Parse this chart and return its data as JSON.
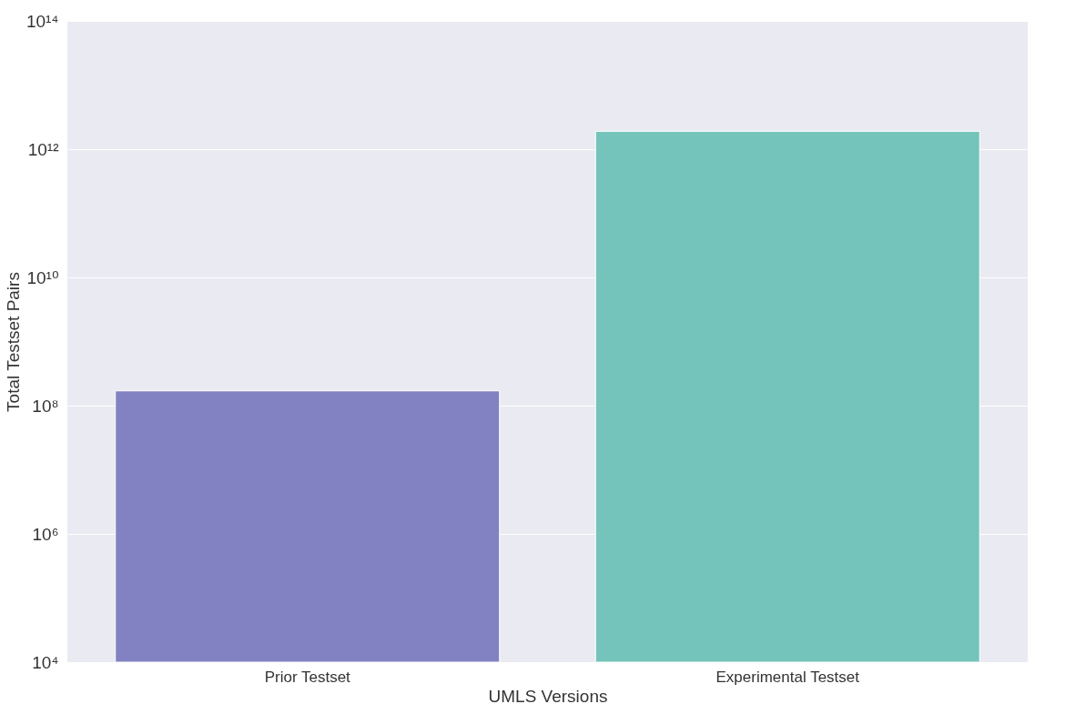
{
  "chart_data": {
    "type": "bar",
    "xlabel": "UMLS Versions",
    "ylabel": "Total Testset Pairs",
    "categories": [
      "Prior Testset",
      "Experimental Testset"
    ],
    "values": [
      170000000.0,
      1900000000000.0
    ],
    "colors": [
      "#8282c2",
      "#75c4bb"
    ],
    "log": "y",
    "grid": "y",
    "ylim": [
      10000,
      100000000000000.0
    ],
    "yticks": [
      {
        "value": 10000,
        "label": "10⁴"
      },
      {
        "value": 1000000,
        "label": "10⁶"
      },
      {
        "value": 100000000,
        "label": "10⁸"
      },
      {
        "value": 10000000000,
        "label": "10¹⁰"
      },
      {
        "value": 1000000000000,
        "label": "10¹²"
      },
      {
        "value": 100000000000000,
        "label": "10¹⁴"
      }
    ]
  }
}
